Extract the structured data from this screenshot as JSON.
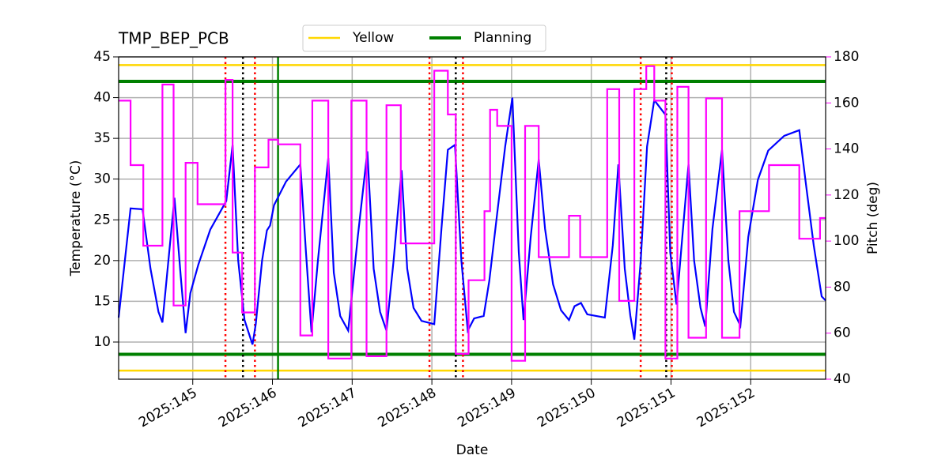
{
  "chart_data": {
    "type": "line",
    "title": "TMP_BEP_PCB",
    "xlabel": "Date",
    "ylabel": "Temperature (°C)",
    "y2label": "Pitch (deg)",
    "xlim": [
      144.07,
      152.94
    ],
    "ylim": [
      5.44,
      45
    ],
    "y2lim": [
      40,
      180
    ],
    "xticks": [
      {
        "value": 145,
        "label": "2025:145"
      },
      {
        "value": 146,
        "label": "2025:146"
      },
      {
        "value": 147,
        "label": "2025:147"
      },
      {
        "value": 148,
        "label": "2025:148"
      },
      {
        "value": 149,
        "label": "2025:149"
      },
      {
        "value": 150,
        "label": "2025:150"
      },
      {
        "value": 151,
        "label": "2025:151"
      },
      {
        "value": 152,
        "label": "2025:152"
      }
    ],
    "yticks": [
      10,
      15,
      20,
      25,
      30,
      35,
      40,
      45
    ],
    "y2ticks": [
      40,
      60,
      80,
      100,
      120,
      140,
      160,
      180
    ],
    "y2color": "#ff00ff",
    "grid": true,
    "legend": "top",
    "limits": [
      {
        "name": "Yellow",
        "color": "#ffd700",
        "values": [
          6.5,
          44
        ]
      },
      {
        "name": "Planning",
        "color": "#008000",
        "values": [
          8.5,
          42
        ]
      }
    ],
    "vlines": [
      {
        "color": "#008000",
        "style": "solid",
        "x": [
          146.07
        ]
      },
      {
        "color": "#ff0000",
        "style": "dotted",
        "x": [
          145.41,
          145.78,
          147.97,
          148.39,
          150.62,
          151.01
        ]
      },
      {
        "color": "#000000",
        "style": "dotted",
        "x": [
          145.63,
          148.3,
          150.94
        ]
      }
    ],
    "series": [
      {
        "color": "#0000ff",
        "axis": "y",
        "x": [
          144.07,
          144.22,
          144.37,
          144.47,
          144.57,
          144.62,
          144.77,
          144.85,
          144.91,
          144.97,
          145.07,
          145.22,
          145.42,
          145.5,
          145.57,
          145.65,
          145.75,
          145.79,
          145.87,
          145.93,
          145.97,
          146.02,
          146.17,
          146.35,
          146.42,
          146.49,
          146.57,
          146.7,
          146.77,
          146.85,
          146.95,
          147.07,
          147.19,
          147.27,
          147.35,
          147.43,
          147.52,
          147.62,
          147.69,
          147.77,
          147.87,
          148.03,
          148.12,
          148.2,
          148.29,
          148.37,
          148.45,
          148.53,
          148.65,
          148.72,
          148.82,
          148.92,
          149.01,
          149.09,
          149.15,
          149.24,
          149.34,
          149.42,
          149.52,
          149.62,
          149.72,
          149.79,
          149.87,
          149.95,
          150.17,
          150.27,
          150.34,
          150.42,
          150.49,
          150.54,
          150.62,
          150.7,
          150.79,
          150.93,
          150.99,
          151.07,
          151.22,
          151.29,
          151.37,
          151.43,
          151.52,
          151.64,
          151.72,
          151.79,
          151.87,
          151.97,
          152.09,
          152.22,
          152.42,
          152.61,
          152.69,
          152.79,
          152.89,
          152.94
        ],
        "values": [
          13,
          26.4,
          26.3,
          19,
          13.7,
          12.4,
          27.7,
          18,
          11.1,
          16,
          19.5,
          23.8,
          27.3,
          34.2,
          20,
          12.7,
          9.7,
          12.2,
          20,
          23.7,
          24.3,
          26.8,
          29.7,
          31.8,
          21,
          11.2,
          20,
          32.6,
          18.5,
          13.2,
          11.4,
          22.9,
          33.4,
          19,
          13.7,
          11.4,
          20,
          31.1,
          19,
          14.2,
          12.6,
          12.2,
          23.9,
          33.6,
          34.2,
          20,
          11.4,
          12.9,
          13.2,
          17.5,
          25.8,
          34,
          40,
          21,
          12.7,
          22.9,
          32.4,
          23.9,
          17.1,
          13.9,
          12.7,
          14.4,
          14.8,
          13.4,
          13,
          21.9,
          31.8,
          19,
          13.2,
          10.3,
          20,
          34,
          39.7,
          37.9,
          21,
          14.6,
          31.8,
          20,
          14.2,
          11.9,
          23.9,
          33.6,
          20,
          13.7,
          12,
          22.9,
          29.9,
          33.5,
          35.3,
          36,
          29.6,
          21.9,
          15.6,
          15.1
        ]
      },
      {
        "color": "#ff00ff",
        "axis": "y2",
        "x": [
          144.07,
          144.22,
          144.22,
          144.38,
          144.38,
          144.62,
          144.62,
          144.76,
          144.76,
          144.91,
          144.91,
          145.06,
          145.06,
          145.41,
          145.41,
          145.5,
          145.5,
          145.62,
          145.62,
          145.78,
          145.78,
          145.95,
          145.95,
          146.07,
          146.07,
          146.35,
          146.35,
          146.5,
          146.5,
          146.7,
          146.7,
          146.99,
          146.99,
          147.18,
          147.18,
          147.43,
          147.43,
          147.61,
          147.61,
          148.03,
          148.03,
          148.2,
          148.2,
          148.3,
          148.3,
          148.46,
          148.46,
          148.66,
          148.66,
          148.73,
          148.73,
          148.82,
          148.82,
          149.0,
          149.0,
          149.17,
          149.17,
          149.34,
          149.34,
          149.72,
          149.72,
          149.86,
          149.86,
          150.2,
          150.2,
          150.35,
          150.35,
          150.54,
          150.54,
          150.69,
          150.69,
          150.79,
          150.79,
          150.93,
          150.93,
          151.08,
          151.08,
          151.22,
          151.22,
          151.44,
          151.44,
          151.64,
          151.64,
          151.86,
          151.86,
          152.23,
          152.23,
          152.61,
          152.61,
          152.87,
          152.87,
          152.94
        ],
        "values": [
          161,
          161,
          133,
          133,
          98,
          98,
          168,
          168,
          72,
          72,
          134,
          134,
          116,
          116,
          170,
          170,
          95,
          95,
          69,
          69,
          132,
          132,
          144,
          144,
          142,
          142,
          59,
          59,
          161,
          161,
          49,
          49,
          161,
          161,
          50,
          50,
          159,
          159,
          99,
          99,
          174,
          174,
          155,
          155,
          51,
          51,
          83,
          83,
          113,
          113,
          157,
          157,
          150,
          150,
          48,
          48,
          150,
          150,
          93,
          93,
          111,
          111,
          93,
          93,
          166,
          166,
          74,
          74,
          166,
          166,
          176,
          176,
          161,
          161,
          49,
          49,
          167,
          167,
          58,
          58,
          162,
          162,
          58,
          58,
          113,
          113,
          133,
          133,
          101,
          101,
          110,
          110
        ]
      }
    ]
  }
}
